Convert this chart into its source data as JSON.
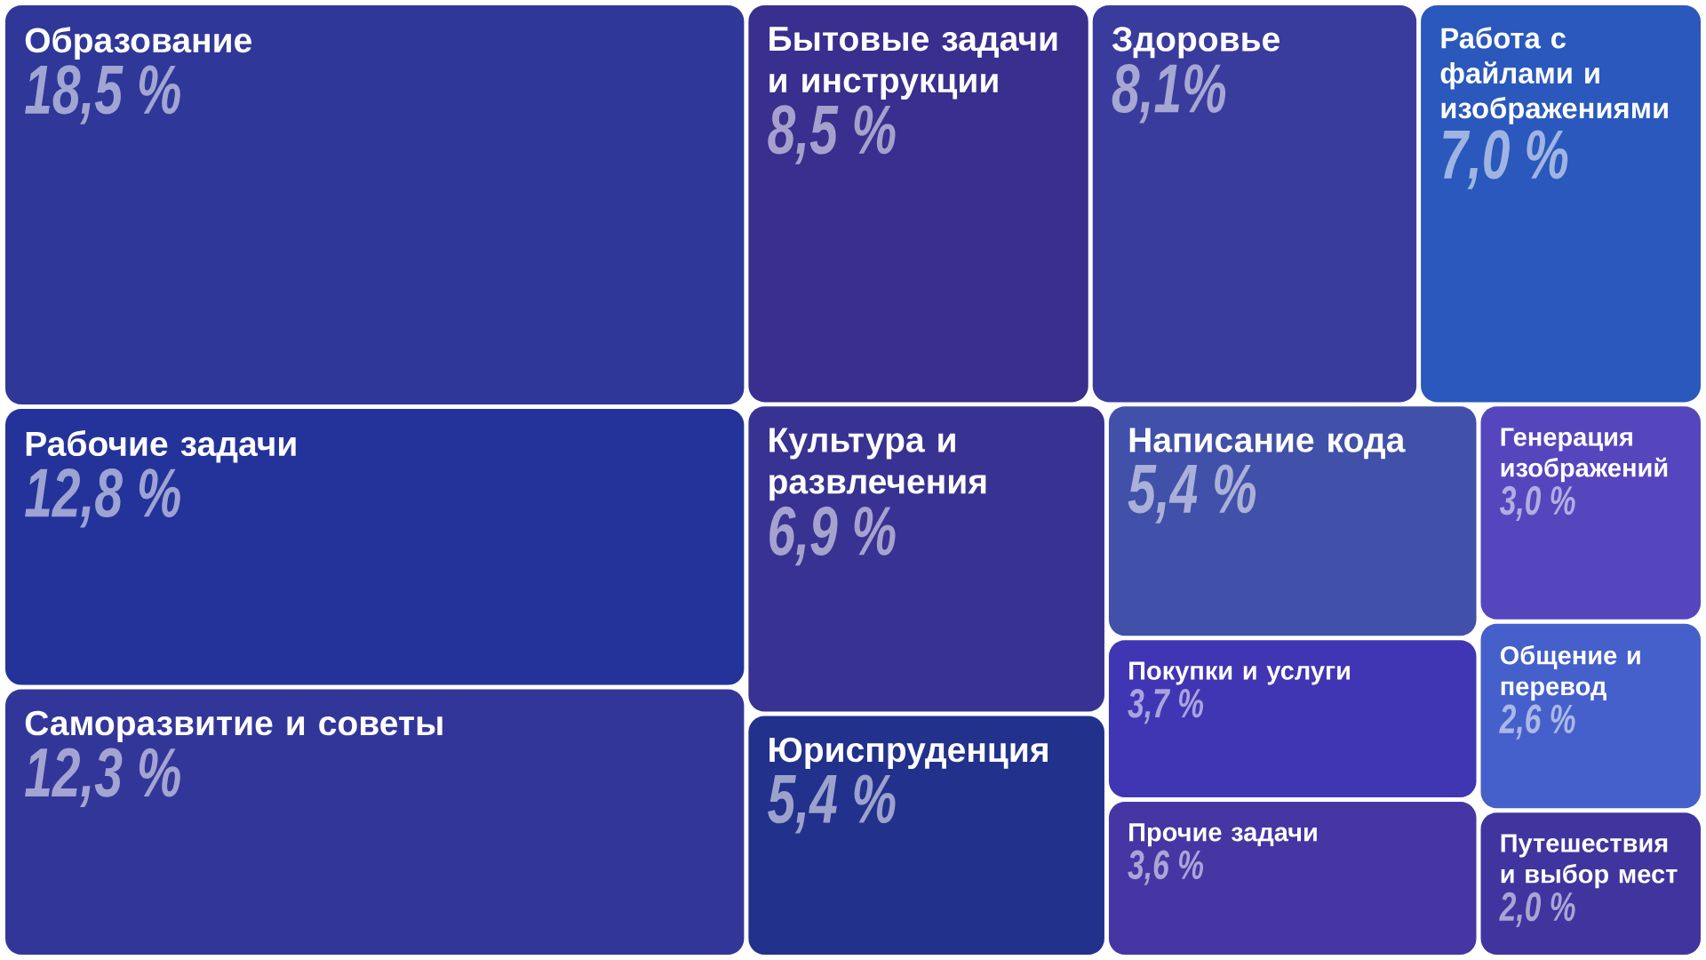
{
  "chart_data": {
    "type": "other",
    "categories": [
      "Образование",
      "Рабочие задачи",
      "Саморазвитие и советы",
      "Бытовые задачи и инструкции",
      "Здоровье",
      "Работа с файлами и изображениями",
      "Культура и развлечения",
      "Юриспруденция",
      "Написание кода",
      "Покупки и услуги",
      "Прочие задачи",
      "Генерация изображений",
      "Общение и перевод",
      "Путешествия и выбор мест"
    ],
    "values": [
      18.5,
      12.8,
      12.3,
      8.5,
      8.1,
      7.0,
      6.9,
      5.4,
      5.4,
      3.7,
      3.6,
      3.0,
      2.6,
      2.0
    ],
    "value_labels": [
      "18,5 %",
      "12,8 %",
      "12,3 %",
      "8,5 %",
      "8,1%",
      "7,0 %",
      "6,9 %",
      "5,4 %",
      "5,4 %",
      "3,7 %",
      "3,6 %",
      "3,0 %",
      "2,6 %",
      "2,0 %"
    ],
    "colors": [
      "#2f3898",
      "#24339a",
      "#333699",
      "#382f8e",
      "#393c9c",
      "#2a58bc",
      "#383292",
      "#22318c",
      "#4150a8",
      "#4036b4",
      "#4536a4",
      "#5546be",
      "#4560ca",
      "#40359e"
    ]
  }
}
